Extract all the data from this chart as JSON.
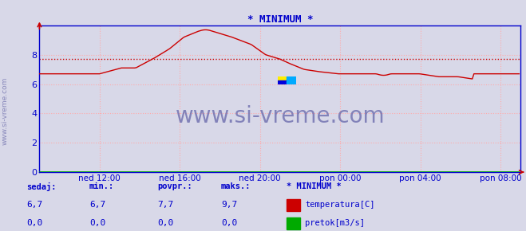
{
  "title": "* MINIMUM *",
  "title_color": "#0000cc",
  "bg_color": "#d8d8e8",
  "plot_bg_color": "#d8d8e8",
  "grid_color": "#ffaaaa",
  "grid_linestyle": ":",
  "ylim": [
    0,
    10
  ],
  "yticks": [
    0,
    2,
    4,
    6,
    8
  ],
  "axis_color_blue": "#0000cc",
  "axis_color_red": "#cc0000",
  "xtick_labels": [
    "ned 12:00",
    "ned 16:00",
    "ned 20:00",
    "pon 00:00",
    "pon 04:00",
    "pon 08:00"
  ],
  "watermark_text": "www.si-vreme.com",
  "watermark_color": "#6666aa",
  "avg_line_value": 7.7,
  "avg_line_color": "#cc0000",
  "avg_line_style": ":",
  "temp_color": "#cc0000",
  "pretok_color": "#00aa00",
  "legend_labels": [
    "temperatura[C]",
    "pretok[m3/s]"
  ],
  "legend_colors": [
    "#cc0000",
    "#00aa00"
  ],
  "table_headers": [
    "sedaj:",
    "min.:",
    "povpr.:",
    "maks.:",
    "* MINIMUM *"
  ],
  "table_row1": [
    "6,7",
    "6,7",
    "7,7",
    "9,7",
    ""
  ],
  "table_row2": [
    "0,0",
    "0,0",
    "0,0",
    "0,0",
    ""
  ],
  "table_color": "#0000cc",
  "num_points": 288,
  "xtick_positions": [
    36,
    84,
    132,
    180,
    228,
    276
  ],
  "logo_colors": [
    "#ffee00",
    "#00aaff",
    "#0000dd",
    "#00aaff"
  ],
  "sidebar_text": "www.si-vreme.com",
  "sidebar_color": "#8888bb"
}
